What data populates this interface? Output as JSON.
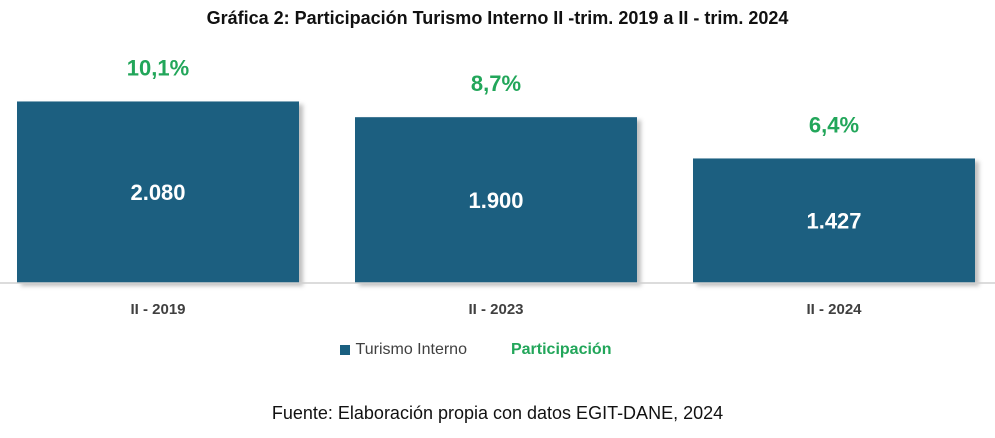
{
  "chart_data": {
    "type": "bar",
    "title": "Gráfica 2: Participación Turismo Interno II -trim. 2019 a II - trim. 2024",
    "categories": [
      "II - 2019",
      "II - 2023",
      "II - 2024"
    ],
    "series": [
      {
        "name": "Turismo Interno",
        "values": [
          2080,
          1900,
          1427
        ],
        "value_labels": [
          "2.080",
          "1.900",
          "1.427"
        ],
        "color": "#1a5f80"
      },
      {
        "name": "Participación",
        "values": [
          10.1,
          8.7,
          6.4
        ],
        "value_labels": [
          "10,1%",
          "8,7%",
          "6,4%"
        ],
        "color": "#22a65a"
      }
    ],
    "xlabel": "",
    "ylabel": "",
    "grid": false,
    "legend_position": "bottom"
  },
  "source_note": "Fuente: Elaboración propia con datos EGIT-DANE, 2024"
}
